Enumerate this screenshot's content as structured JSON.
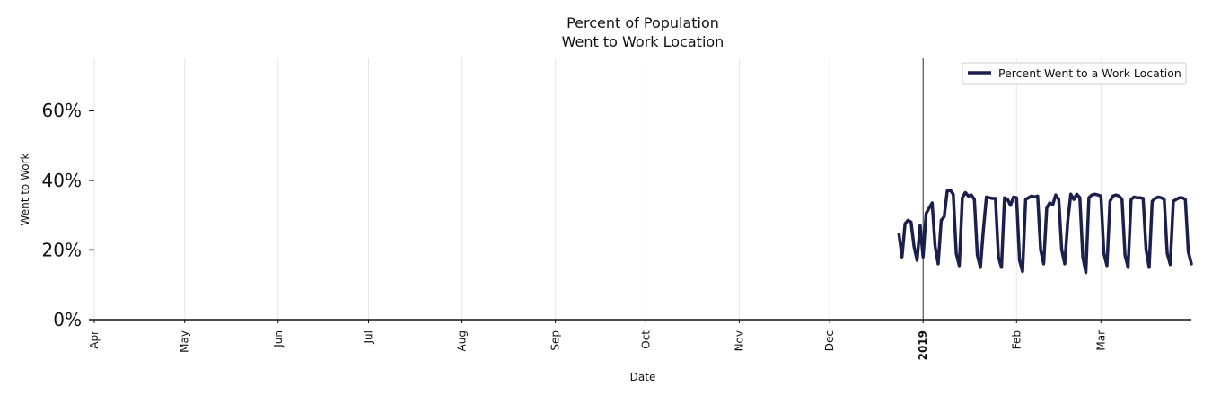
{
  "chart_data": {
    "type": "line",
    "title": [
      "Percent of Population",
      "Went to Work Location"
    ],
    "xlabel": "Date",
    "ylabel": "Went to Work",
    "xlim": [
      "2018-04-01",
      "2019-03-31"
    ],
    "ylim": [
      0,
      0.75
    ],
    "y_format": "percent",
    "grid": "vertical",
    "legend_position": "top-right",
    "marker_date": "2019-01-01",
    "x_ticks": [
      {
        "date": "2018-04-01",
        "label": "Apr",
        "bold": false
      },
      {
        "date": "2018-05-01",
        "label": "May",
        "bold": false
      },
      {
        "date": "2018-06-01",
        "label": "Jun",
        "bold": false
      },
      {
        "date": "2018-07-01",
        "label": "Jul",
        "bold": false
      },
      {
        "date": "2018-08-01",
        "label": "Aug",
        "bold": false
      },
      {
        "date": "2018-09-01",
        "label": "Sep",
        "bold": false
      },
      {
        "date": "2018-10-01",
        "label": "Oct",
        "bold": false
      },
      {
        "date": "2018-11-01",
        "label": "Nov",
        "bold": false
      },
      {
        "date": "2018-12-01",
        "label": "Dec",
        "bold": false
      },
      {
        "date": "2019-01-01",
        "label": "2019",
        "bold": true
      },
      {
        "date": "2019-02-01",
        "label": "Feb",
        "bold": false
      },
      {
        "date": "2019-03-01",
        "label": "Mar",
        "bold": false
      }
    ],
    "y_ticks": [
      {
        "value": 0.0,
        "label": "0%"
      },
      {
        "value": 0.2,
        "label": "20%"
      },
      {
        "value": 0.4,
        "label": "40%"
      },
      {
        "value": 0.6,
        "label": "60%"
      }
    ],
    "series": [
      {
        "name": "Percent Went to a Work Location",
        "color": "#1b1f4b",
        "points": [
          [
            "2018-12-24",
            0.245
          ],
          [
            "2018-12-25",
            0.18
          ],
          [
            "2018-12-26",
            0.275
          ],
          [
            "2018-12-27",
            0.285
          ],
          [
            "2018-12-28",
            0.28
          ],
          [
            "2018-12-29",
            0.21
          ],
          [
            "2018-12-30",
            0.17
          ],
          [
            "2018-12-31",
            0.27
          ],
          [
            "2019-01-01",
            0.18
          ],
          [
            "2019-01-02",
            0.305
          ],
          [
            "2019-01-03",
            0.32
          ],
          [
            "2019-01-04",
            0.335
          ],
          [
            "2019-01-05",
            0.21
          ],
          [
            "2019-01-06",
            0.16
          ],
          [
            "2019-01-07",
            0.285
          ],
          [
            "2019-01-08",
            0.295
          ],
          [
            "2019-01-09",
            0.37
          ],
          [
            "2019-01-10",
            0.372
          ],
          [
            "2019-01-11",
            0.36
          ],
          [
            "2019-01-12",
            0.19
          ],
          [
            "2019-01-13",
            0.155
          ],
          [
            "2019-01-14",
            0.35
          ],
          [
            "2019-01-15",
            0.365
          ],
          [
            "2019-01-16",
            0.355
          ],
          [
            "2019-01-17",
            0.358
          ],
          [
            "2019-01-18",
            0.345
          ],
          [
            "2019-01-19",
            0.185
          ],
          [
            "2019-01-20",
            0.15
          ],
          [
            "2019-01-21",
            0.26
          ],
          [
            "2019-01-22",
            0.352
          ],
          [
            "2019-01-23",
            0.35
          ],
          [
            "2019-01-24",
            0.348
          ],
          [
            "2019-01-25",
            0.348
          ],
          [
            "2019-01-26",
            0.18
          ],
          [
            "2019-01-27",
            0.15
          ],
          [
            "2019-01-28",
            0.35
          ],
          [
            "2019-01-29",
            0.345
          ],
          [
            "2019-01-30",
            0.328
          ],
          [
            "2019-01-31",
            0.352
          ],
          [
            "2019-02-01",
            0.35
          ],
          [
            "2019-02-02",
            0.17
          ],
          [
            "2019-02-03",
            0.138
          ],
          [
            "2019-02-04",
            0.345
          ],
          [
            "2019-02-05",
            0.35
          ],
          [
            "2019-02-06",
            0.355
          ],
          [
            "2019-02-07",
            0.352
          ],
          [
            "2019-02-08",
            0.355
          ],
          [
            "2019-02-09",
            0.2
          ],
          [
            "2019-02-10",
            0.16
          ],
          [
            "2019-02-11",
            0.32
          ],
          [
            "2019-02-12",
            0.335
          ],
          [
            "2019-02-13",
            0.33
          ],
          [
            "2019-02-14",
            0.358
          ],
          [
            "2019-02-15",
            0.345
          ],
          [
            "2019-02-16",
            0.2
          ],
          [
            "2019-02-17",
            0.16
          ],
          [
            "2019-02-18",
            0.285
          ],
          [
            "2019-02-19",
            0.36
          ],
          [
            "2019-02-20",
            0.345
          ],
          [
            "2019-02-21",
            0.36
          ],
          [
            "2019-02-22",
            0.35
          ],
          [
            "2019-02-23",
            0.18
          ],
          [
            "2019-02-24",
            0.135
          ],
          [
            "2019-02-25",
            0.35
          ],
          [
            "2019-02-26",
            0.358
          ],
          [
            "2019-02-27",
            0.36
          ],
          [
            "2019-02-28",
            0.358
          ],
          [
            "2019-03-01",
            0.355
          ],
          [
            "2019-03-02",
            0.19
          ],
          [
            "2019-03-03",
            0.155
          ],
          [
            "2019-03-04",
            0.34
          ],
          [
            "2019-03-05",
            0.355
          ],
          [
            "2019-03-06",
            0.358
          ],
          [
            "2019-03-07",
            0.355
          ],
          [
            "2019-03-08",
            0.345
          ],
          [
            "2019-03-09",
            0.185
          ],
          [
            "2019-03-10",
            0.15
          ],
          [
            "2019-03-11",
            0.345
          ],
          [
            "2019-03-12",
            0.352
          ],
          [
            "2019-03-13",
            0.35
          ],
          [
            "2019-03-14",
            0.35
          ],
          [
            "2019-03-15",
            0.348
          ],
          [
            "2019-03-16",
            0.2
          ],
          [
            "2019-03-17",
            0.15
          ],
          [
            "2019-03-18",
            0.34
          ],
          [
            "2019-03-19",
            0.348
          ],
          [
            "2019-03-20",
            0.352
          ],
          [
            "2019-03-21",
            0.35
          ],
          [
            "2019-03-22",
            0.345
          ],
          [
            "2019-03-23",
            0.19
          ],
          [
            "2019-03-24",
            0.158
          ],
          [
            "2019-03-25",
            0.34
          ],
          [
            "2019-03-26",
            0.345
          ],
          [
            "2019-03-27",
            0.35
          ],
          [
            "2019-03-28",
            0.35
          ],
          [
            "2019-03-29",
            0.345
          ],
          [
            "2019-03-30",
            0.195
          ],
          [
            "2019-03-31",
            0.16
          ]
        ]
      }
    ]
  }
}
